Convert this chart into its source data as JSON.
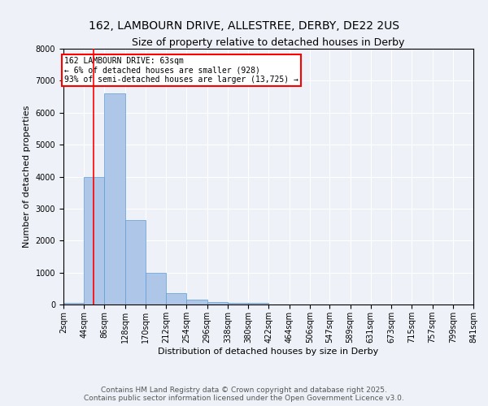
{
  "title": "162, LAMBOURN DRIVE, ALLESTREE, DERBY, DE22 2US",
  "subtitle": "Size of property relative to detached houses in Derby",
  "xlabel": "Distribution of detached houses by size in Derby",
  "ylabel": "Number of detached properties",
  "bin_labels": [
    "2sqm",
    "44sqm",
    "86sqm",
    "128sqm",
    "170sqm",
    "212sqm",
    "254sqm",
    "296sqm",
    "338sqm",
    "380sqm",
    "422sqm",
    "464sqm",
    "506sqm",
    "547sqm",
    "589sqm",
    "631sqm",
    "673sqm",
    "715sqm",
    "757sqm",
    "799sqm",
    "841sqm"
  ],
  "bin_edges": [
    2,
    44,
    86,
    128,
    170,
    212,
    254,
    296,
    338,
    380,
    422,
    464,
    506,
    547,
    589,
    631,
    673,
    715,
    757,
    799,
    841
  ],
  "bar_heights": [
    50,
    4000,
    6600,
    2650,
    1000,
    350,
    150,
    80,
    50,
    50,
    0,
    0,
    0,
    0,
    0,
    0,
    0,
    0,
    0,
    0
  ],
  "bar_color": "#aec6e8",
  "bar_edge_color": "#5b9bd5",
  "property_size": 63,
  "red_line_color": "#ff0000",
  "annotation_text": "162 LAMBOURN DRIVE: 63sqm\n← 6% of detached houses are smaller (928)\n93% of semi-detached houses are larger (13,725) →",
  "annotation_box_color": "#ffffff",
  "annotation_box_edge_color": "#ff0000",
  "ylim": [
    0,
    8000
  ],
  "yticks": [
    0,
    1000,
    2000,
    3000,
    4000,
    5000,
    6000,
    7000,
    8000
  ],
  "footer_line1": "Contains HM Land Registry data © Crown copyright and database right 2025.",
  "footer_line2": "Contains public sector information licensed under the Open Government Licence v3.0.",
  "background_color": "#eef2f8",
  "title_fontsize": 10,
  "subtitle_fontsize": 9,
  "axis_label_fontsize": 8,
  "tick_fontsize": 7,
  "footer_fontsize": 6.5,
  "annotation_fontsize": 7
}
